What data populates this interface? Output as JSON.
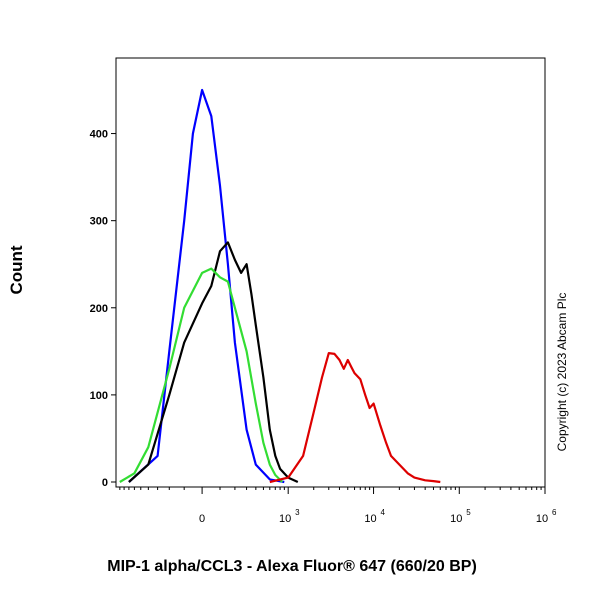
{
  "chart_data": {
    "type": "line",
    "xlabel": "MIP-1 alpha/CCL3 - Alexa Fluor® 647 (660/20 BP)",
    "ylabel": "Count",
    "x_scale": "biexponential",
    "ylim": [
      0,
      480
    ],
    "y_ticks": [
      {
        "value": 0,
        "label": "0"
      },
      {
        "value": 100,
        "label": "100"
      },
      {
        "value": 200,
        "label": "200"
      },
      {
        "value": 300,
        "label": "300"
      },
      {
        "value": 400,
        "label": "400"
      }
    ],
    "x_ticks": [
      {
        "value": 0,
        "label": "0",
        "exp": ""
      },
      {
        "value": 1000,
        "label": "10",
        "exp": "3"
      },
      {
        "value": 10000,
        "label": "10",
        "exp": "4"
      },
      {
        "value": 100000,
        "label": "10",
        "exp": "5"
      },
      {
        "value": 1000000,
        "label": "10",
        "exp": "6"
      }
    ],
    "annotation": "Copyright (c) 2023 Abcam Plc",
    "grid": false,
    "legend": "none",
    "series": [
      {
        "color": "#0000ff",
        "x": [
          -700,
          -300,
          -200,
          -100,
          -50,
          0,
          50,
          100,
          150,
          200,
          300,
          400,
          600,
          900
        ],
        "y": [
          0,
          30,
          150,
          300,
          400,
          450,
          420,
          340,
          250,
          160,
          60,
          20,
          3,
          0
        ]
      },
      {
        "color": "#000000",
        "x": [
          -700,
          -400,
          -200,
          -100,
          0,
          50,
          100,
          150,
          200,
          250,
          300,
          350,
          400,
          500,
          600,
          700,
          800,
          1000,
          1300
        ],
        "y": [
          0,
          20,
          100,
          160,
          205,
          225,
          265,
          275,
          255,
          240,
          250,
          215,
          180,
          120,
          60,
          30,
          15,
          5,
          0
        ]
      },
      {
        "color": "#33dd33",
        "x": [
          -900,
          -600,
          -400,
          -200,
          -100,
          0,
          50,
          100,
          150,
          200,
          300,
          400,
          500,
          600,
          700,
          850
        ],
        "y": [
          0,
          10,
          40,
          130,
          200,
          240,
          245,
          235,
          230,
          200,
          150,
          90,
          45,
          20,
          8,
          0
        ]
      },
      {
        "color": "#dd0000",
        "x": [
          600,
          1000,
          1500,
          2000,
          2500,
          3000,
          3500,
          4000,
          4500,
          5000,
          5500,
          6000,
          7000,
          8000,
          9000,
          10000,
          12000,
          14000,
          16000,
          20000,
          25000,
          30000,
          40000,
          50000,
          60000
        ],
        "y": [
          0,
          5,
          30,
          80,
          120,
          148,
          147,
          140,
          130,
          140,
          132,
          125,
          118,
          100,
          85,
          90,
          65,
          45,
          30,
          20,
          10,
          5,
          2,
          1,
          0
        ]
      }
    ]
  }
}
